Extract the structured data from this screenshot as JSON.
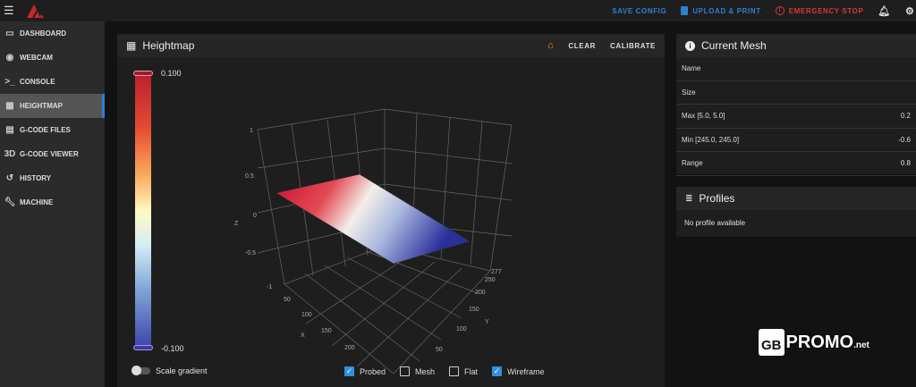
{
  "topbar": {
    "save_config": "SAVE CONFIG",
    "upload_print": "UPLOAD & PRINT",
    "emergency_stop": "EMERGENCY STOP"
  },
  "sidebar": {
    "items": [
      {
        "label": "DASHBOARD",
        "icon": "monitor-icon"
      },
      {
        "label": "WEBCAM",
        "icon": "webcam-icon"
      },
      {
        "label": "CONSOLE",
        "icon": "console-icon",
        "glyph": ">_"
      },
      {
        "label": "HEIGHTMAP",
        "icon": "grid-icon",
        "active": true
      },
      {
        "label": "G-CODE FILES",
        "icon": "file-icon"
      },
      {
        "label": "G-CODE VIEWER",
        "icon": "3d-icon",
        "glyph": "3D"
      },
      {
        "label": "HISTORY",
        "icon": "history-icon"
      },
      {
        "label": "MACHINE",
        "icon": "wrench-icon"
      }
    ]
  },
  "heightmap": {
    "title": "Heightmap",
    "clear": "CLEAR",
    "calibrate": "CALIBRATE",
    "scale_max": "0.100",
    "scale_min": "-0.100",
    "z_ticks": [
      "1",
      "0.5",
      "0",
      "-0.5",
      "-1"
    ],
    "z_label": "Z",
    "x_ticks": [
      "50",
      "100",
      "150",
      "200"
    ],
    "x_label": "X",
    "y_ticks": [
      "50",
      "100",
      "150",
      "200",
      "250",
      "277"
    ],
    "y_label": "Y",
    "scale_gradient": "Scale gradient",
    "options": [
      {
        "label": "Probed",
        "checked": true
      },
      {
        "label": "Mesh",
        "checked": false
      },
      {
        "label": "Flat",
        "checked": false
      },
      {
        "label": "Wireframe",
        "checked": true
      }
    ]
  },
  "mesh": {
    "title": "Current Mesh",
    "rows": [
      {
        "label": "Name",
        "value": ""
      },
      {
        "label": "Size",
        "value": ""
      },
      {
        "label": "Max [5.0, 5.0]",
        "value": "0.2"
      },
      {
        "label": "Min [245.0, 245.0]",
        "value": "-0.6"
      },
      {
        "label": "Range",
        "value": "0.8"
      }
    ]
  },
  "profiles": {
    "title": "Profiles",
    "empty": "No profile available"
  },
  "watermark": {
    "text": "GBPROMO.net"
  },
  "colors": {
    "accent": "#2f7fd0",
    "danger": "#d9363e",
    "home": "#f39c12"
  }
}
